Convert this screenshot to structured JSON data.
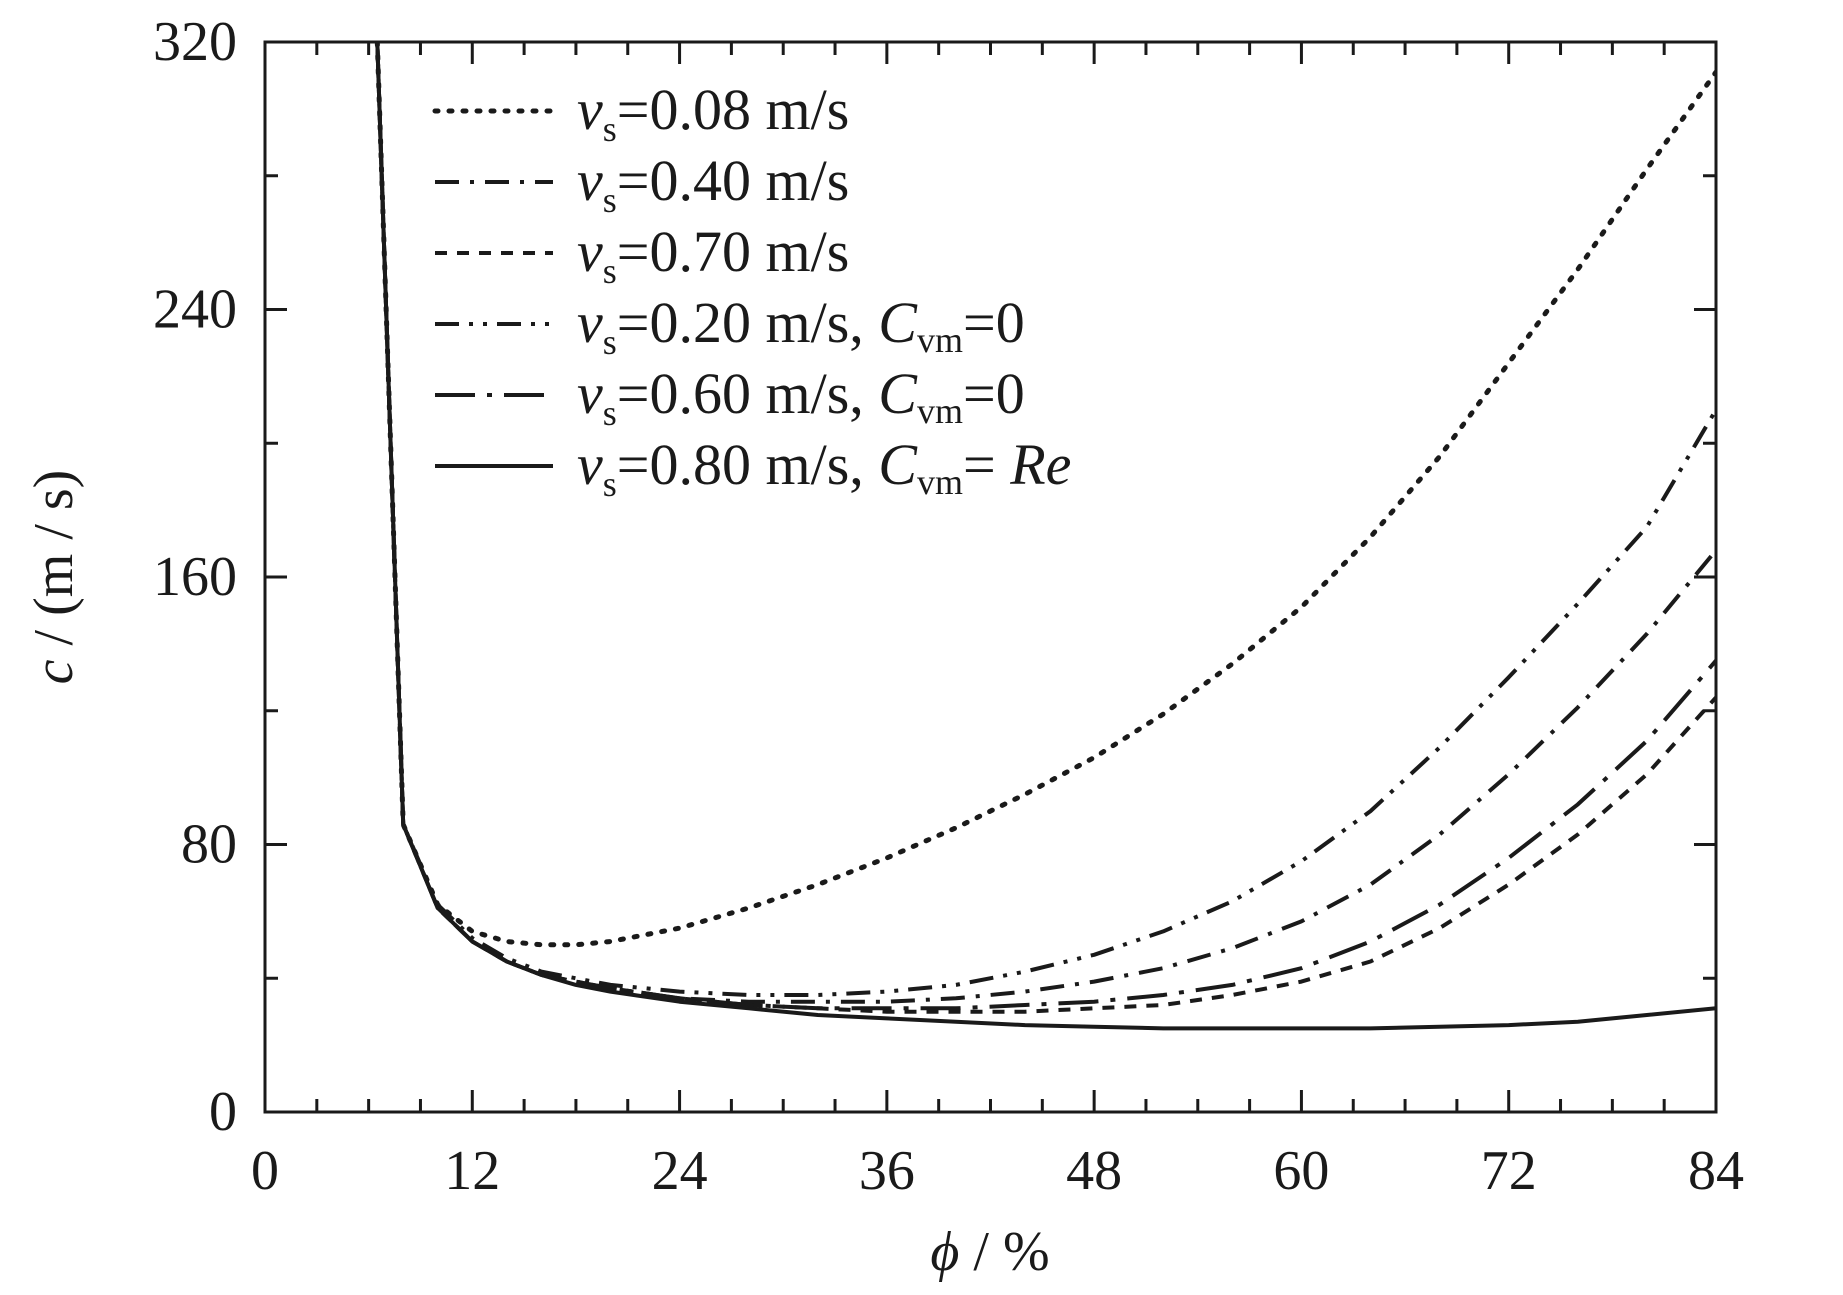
{
  "chart_data": {
    "type": "line",
    "xlabel": {
      "symbol": "ϕ",
      "sep": " / ",
      "unit": "%"
    },
    "ylabel": {
      "symbol": "c",
      "sep": " / ",
      "unit": "(m / s)"
    },
    "xlim": [
      0,
      84
    ],
    "ylim": [
      0,
      320
    ],
    "x_ticks": [
      "0",
      "12",
      "24",
      "36",
      "48",
      "60",
      "72",
      "84"
    ],
    "y_ticks": [
      "0",
      "80",
      "160",
      "240",
      "320"
    ],
    "x_tick_values": [
      0,
      12,
      24,
      36,
      48,
      60,
      72,
      84
    ],
    "y_tick_values": [
      0,
      80,
      160,
      240,
      320
    ],
    "x_minor_step": 3,
    "y_minor_step": 40,
    "grid": false,
    "legend_position": "top-left",
    "line_color": "#1a1a1a",
    "series": [
      {
        "name": "vs=0.08m/s",
        "legend": {
          "v": "v",
          "sub": "s",
          "text": "=0.08 m/s",
          "cvm": "",
          "cvm_sub": "",
          "cvm_val": ""
        },
        "dash": "dot",
        "x": [
          6.5,
          8,
          10,
          12,
          14,
          16,
          18,
          20,
          24,
          28,
          32,
          36,
          40,
          44,
          48,
          52,
          56,
          60,
          64,
          68,
          72,
          76,
          80,
          84
        ],
        "y": [
          320,
          86,
          62,
          54,
          51,
          50,
          50,
          51,
          55,
          61,
          68,
          76,
          85,
          95,
          106,
          119,
          134,
          151,
          172,
          196,
          224,
          252,
          282,
          311
        ]
      },
      {
        "name": "vs=0.40m/s",
        "legend": {
          "v": "v",
          "sub": "s",
          "text": "=0.40 m/s",
          "cvm": "",
          "cvm_sub": "",
          "cvm_val": ""
        },
        "dash": "dashdot",
        "x": [
          6.5,
          8,
          10,
          12,
          14,
          16,
          18,
          20,
          24,
          28,
          32,
          36,
          40,
          44,
          48,
          52,
          56,
          60,
          64,
          68,
          72,
          76,
          80,
          84
        ],
        "y": [
          320,
          86,
          61,
          51,
          45,
          41,
          39,
          37,
          34,
          33,
          33,
          33,
          34,
          36,
          39,
          43,
          49,
          57,
          68,
          83,
          101,
          121,
          143,
          168
        ]
      },
      {
        "name": "vs=0.70m/s",
        "legend": {
          "v": "v",
          "sub": "s",
          "text": "=0.70 m/s",
          "cvm": "",
          "cvm_sub": "",
          "cvm_val": ""
        },
        "dash": "shortdash",
        "x": [
          6.5,
          8,
          10,
          12,
          14,
          16,
          18,
          20,
          24,
          28,
          32,
          36,
          40,
          44,
          48,
          52,
          56,
          60,
          64,
          68,
          72,
          76,
          80,
          84
        ],
        "y": [
          320,
          86,
          61,
          51,
          45,
          41,
          39,
          37,
          34,
          32,
          31,
          30,
          30,
          30,
          31,
          32,
          35,
          39,
          45,
          55,
          68,
          83,
          101,
          124
        ]
      },
      {
        "name": "vs=0.20m/s, Cvm=0",
        "legend": {
          "v": "v",
          "sub": "s",
          "text": "=0.20 m/s",
          "cvm": "C",
          "cvm_sub": "vm",
          "cvm_val": "=0"
        },
        "dash": "dashdotdot",
        "x": [
          6.5,
          8,
          10,
          12,
          14,
          16,
          18,
          20,
          24,
          28,
          32,
          36,
          40,
          44,
          48,
          52,
          56,
          60,
          64,
          68,
          72,
          76,
          80,
          84
        ],
        "y": [
          320,
          86,
          62,
          52,
          46,
          42,
          40,
          38,
          36,
          35,
          35,
          36,
          38,
          42,
          47,
          54,
          63,
          75,
          90,
          109,
          130,
          152,
          175,
          210
        ]
      },
      {
        "name": "vs=0.60m/s, Cvm=0",
        "legend": {
          "v": "v",
          "sub": "s",
          "text": "=0.60 m/s",
          "cvm": "C",
          "cvm_sub": "vm",
          "cvm_val": "=0"
        },
        "dash": "longdashdot",
        "x": [
          6.5,
          8,
          10,
          12,
          14,
          16,
          18,
          20,
          24,
          28,
          32,
          36,
          40,
          44,
          48,
          52,
          56,
          60,
          64,
          68,
          72,
          76,
          80,
          84
        ],
        "y": [
          320,
          86,
          61,
          51,
          45,
          41,
          39,
          37,
          34,
          32,
          31,
          31,
          31,
          32,
          33,
          35,
          38,
          43,
          51,
          62,
          76,
          92,
          111,
          135
        ]
      },
      {
        "name": "vs=0.80m/s, Cvm=Re",
        "legend": {
          "v": "v",
          "sub": "s",
          "text": "=0.80 m/s",
          "cvm": "C",
          "cvm_sub": "vm",
          "cvm_val": "=",
          "cvm_re": "Re"
        },
        "dash": "solid",
        "x": [
          6.5,
          8,
          10,
          12,
          14,
          16,
          18,
          20,
          24,
          28,
          32,
          36,
          40,
          44,
          48,
          52,
          56,
          60,
          64,
          68,
          72,
          76,
          80,
          84
        ],
        "y": [
          320,
          86,
          61,
          51,
          45,
          41,
          38,
          36,
          33,
          31,
          29,
          28,
          27,
          26,
          25.5,
          25,
          25,
          25,
          25,
          25.5,
          26,
          27,
          29,
          31
        ]
      }
    ]
  }
}
